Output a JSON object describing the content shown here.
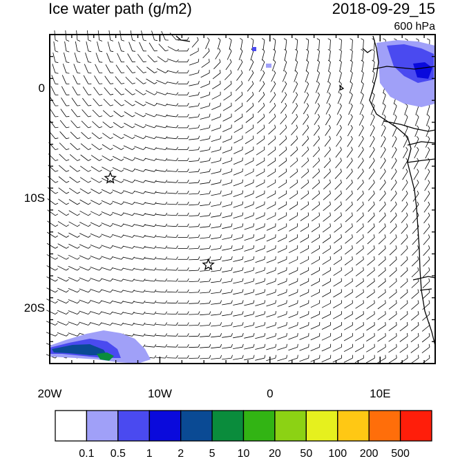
{
  "title_left": "Ice water path (g/m2)",
  "title_right": "2018-09-29_15",
  "level": "600 hPa",
  "map": {
    "lon_range": [
      -20,
      15
    ],
    "lat_range": [
      -25,
      5
    ],
    "y_ticks": [
      {
        "label": "0",
        "lat": 0
      },
      {
        "label": "10S",
        "lat": -10
      },
      {
        "label": "20S",
        "lat": -20
      }
    ],
    "x_ticks": [
      {
        "label": "20W",
        "lon": -20
      },
      {
        "label": "10W",
        "lon": -10
      },
      {
        "label": "0",
        "lon": 0
      },
      {
        "label": "10E",
        "lon": 10
      }
    ],
    "markers": [
      {
        "name": "star",
        "lon": -14.5,
        "lat": -8.1
      },
      {
        "name": "star",
        "lon": -5.6,
        "lat": -16.0
      }
    ]
  },
  "colorbar": {
    "colors": [
      "#ffffff",
      "#a0a0f8",
      "#4a4af0",
      "#0a0adc",
      "#0a4a94",
      "#0a8c3c",
      "#32b414",
      "#8cd214",
      "#e6f01e",
      "#ffc814",
      "#ff6e0a",
      "#ff1e0a"
    ],
    "labels": [
      "0.1",
      "0.5",
      "1",
      "2",
      "5",
      "10",
      "20",
      "50",
      "100",
      "200",
      "500"
    ]
  }
}
